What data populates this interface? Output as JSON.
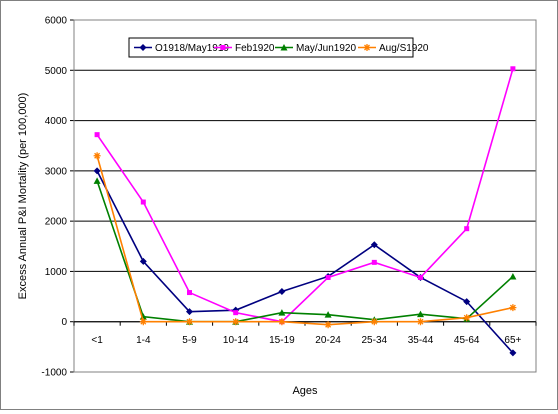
{
  "chart_data": {
    "type": "line",
    "title": "",
    "xlabel": "Ages",
    "ylabel": "Excess Annual P&I Mortality (per 100,000)",
    "categories": [
      "<1",
      "1-4",
      "5-9",
      "10-14",
      "15-19",
      "20-24",
      "25-34",
      "35-44",
      "45-64",
      "65+"
    ],
    "ylim": [
      -1000,
      6000
    ],
    "yticks": [
      -1000,
      0,
      1000,
      2000,
      3000,
      4000,
      5000,
      6000
    ],
    "grid": true,
    "legend_position": "top",
    "series": [
      {
        "name": "O1918/May1919",
        "color": "#000080",
        "marker": "diamond",
        "values": [
          3000,
          1200,
          200,
          230,
          600,
          900,
          1530,
          880,
          400,
          -620
        ]
      },
      {
        "name": "Feb1920",
        "color": "#ff00ff",
        "marker": "square",
        "values": [
          3720,
          2380,
          580,
          180,
          0,
          880,
          1180,
          880,
          1850,
          5030
        ]
      },
      {
        "name": "May/Jun1920",
        "color": "#008000",
        "marker": "triangle",
        "values": [
          2800,
          100,
          0,
          0,
          180,
          140,
          40,
          150,
          60,
          900
        ]
      },
      {
        "name": "Aug/S1920",
        "color": "#ff8000",
        "marker": "star",
        "values": [
          3300,
          0,
          0,
          0,
          0,
          -60,
          0,
          0,
          80,
          280
        ]
      }
    ]
  }
}
